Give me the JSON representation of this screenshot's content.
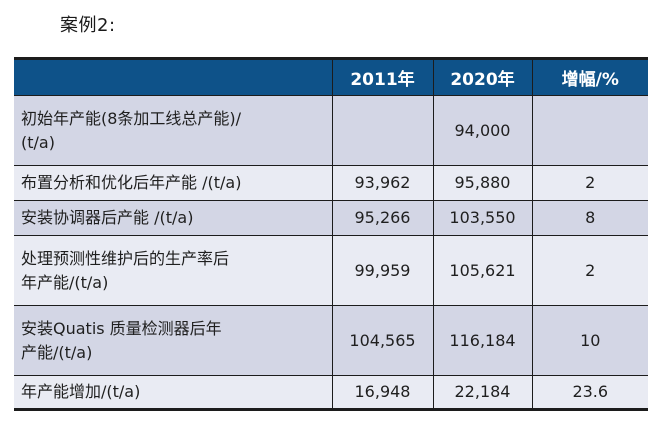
{
  "title": "案例2:",
  "table": {
    "header": {
      "col_label": "",
      "col_2011": "2011年",
      "col_2020": "2020年",
      "col_growth": "增幅/%"
    },
    "rows": [
      {
        "label": "初始年产能(8条加工线总产能)/\n(t/a)",
        "v2011": "",
        "v2020": "94,000",
        "growth": ""
      },
      {
        "label": "布置分析和优化后年产能 /(t/a)",
        "v2011": "93,962",
        "v2020": "95,880",
        "growth": "2"
      },
      {
        "label": "安装协调器后产能 /(t/a)",
        "v2011": "95,266",
        "v2020": "103,550",
        "growth": "8"
      },
      {
        "label": "处理预测性维护后的生产率后\n年产能/(t/a)",
        "v2011": "99,959",
        "v2020": "105,621",
        "growth": "2"
      },
      {
        "label": "安装Quatis 质量检测器后年\n产能/(t/a)",
        "v2011": "104,565",
        "v2020": "116,184",
        "growth": "10"
      },
      {
        "label": "年产能增加/(t/a)",
        "v2011": "16,948",
        "v2020": "22,184",
        "growth": "23.6"
      }
    ],
    "colors": {
      "header_bg": "#0e5289",
      "header_text": "#ffffff",
      "row_dark": "#d3d6e5",
      "row_light": "#e9ebf3",
      "border": "#1c1c1c",
      "text": "#1f1f1f"
    }
  }
}
